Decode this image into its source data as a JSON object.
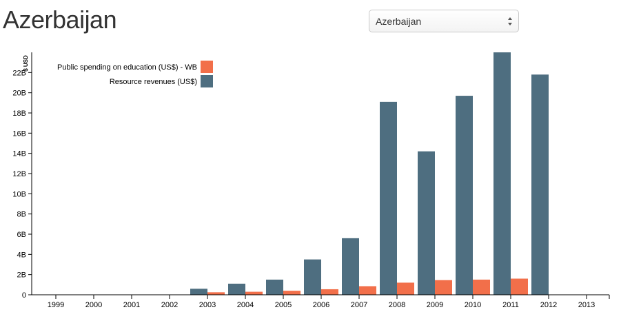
{
  "header": {
    "title": "Azerbaijan"
  },
  "country_select": {
    "selected": "Azerbaijan"
  },
  "colors": {
    "education": "#f26f4a",
    "resource": "#4e6e80",
    "axis": "#000000"
  },
  "chart_data": {
    "type": "bar",
    "title": "",
    "xlabel": "",
    "ylabel": "$ USD",
    "categories": [
      "1999",
      "2000",
      "2001",
      "2002",
      "2003",
      "2004",
      "2005",
      "2006",
      "2007",
      "2008",
      "2009",
      "2010",
      "2011",
      "2012",
      "2013"
    ],
    "ylim": [
      0,
      24
    ],
    "yticks": [
      0,
      2,
      4,
      6,
      8,
      10,
      12,
      14,
      16,
      18,
      20,
      22
    ],
    "ytick_labels": [
      "0",
      "2B",
      "4B",
      "6B",
      "8B",
      "10B",
      "12B",
      "14B",
      "16B",
      "18B",
      "20B",
      "22B"
    ],
    "legend_position": "top-left",
    "series": [
      {
        "name": "Public spending on education (US$) - WB",
        "color": "#f26f4a",
        "values": [
          null,
          null,
          null,
          null,
          0.25,
          0.3,
          0.4,
          0.55,
          0.85,
          1.2,
          1.45,
          1.5,
          1.6,
          null,
          null
        ]
      },
      {
        "name": "Resource revenues (US$)",
        "color": "#4e6e80",
        "values": [
          null,
          null,
          null,
          null,
          0.6,
          1.1,
          1.5,
          3.5,
          5.6,
          19.1,
          14.2,
          19.7,
          24.0,
          21.8,
          null
        ]
      }
    ]
  }
}
